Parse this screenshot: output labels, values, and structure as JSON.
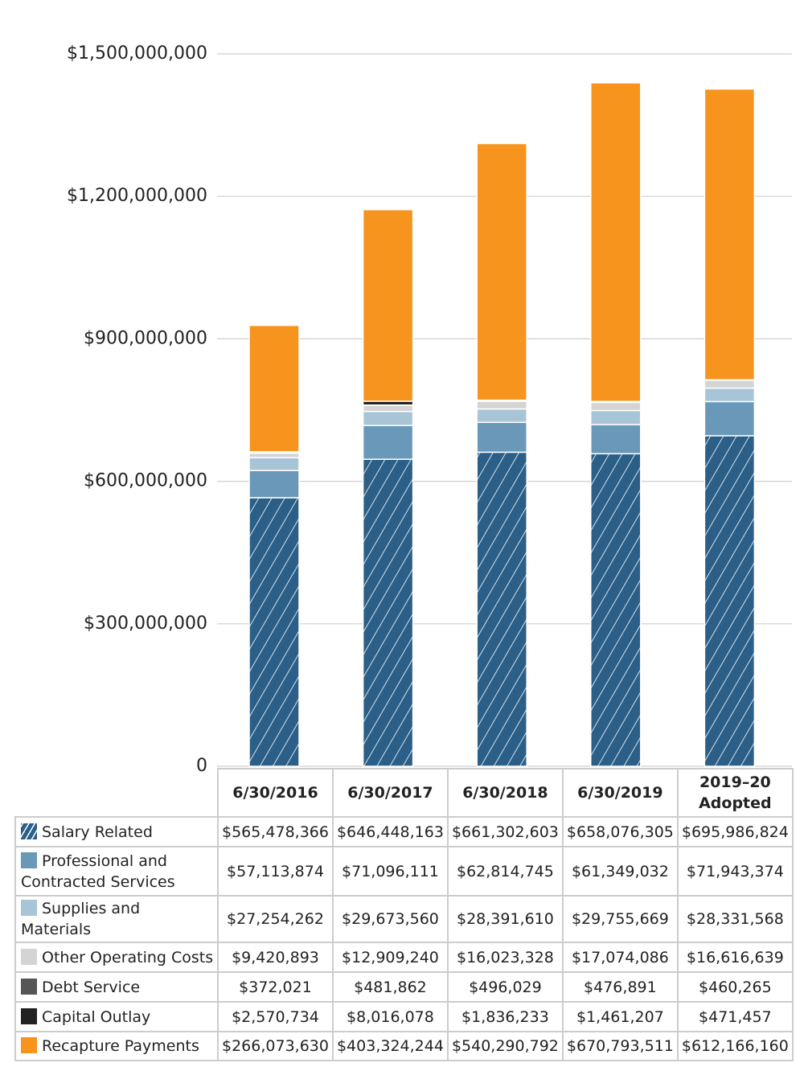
{
  "chart_data": {
    "type": "bar",
    "stacked": true,
    "categories": [
      "6/30/2016",
      "6/30/2017",
      "6/30/2018",
      "6/30/2019",
      "2019–20 Adopted"
    ],
    "ylim": [
      0,
      1500000000
    ],
    "yticks": [
      0,
      {
        "value": 300000000,
        "label": "$300,000,000"
      },
      {
        "value": 600000000,
        "label": "$600,000,000"
      },
      {
        "value": 900000000,
        "label": "$900,000,000"
      },
      {
        "value": 1200000000,
        "label": "$1,200,000,000"
      },
      {
        "value": 1500000000,
        "label": "$1,500,000,000"
      }
    ],
    "grid": true,
    "series": [
      {
        "name": "Salary Related",
        "color": "#2b5f88",
        "hatch": true,
        "values": [
          565478366,
          646448163,
          661302603,
          658076305,
          695986824
        ],
        "value_labels": [
          "$565,478,366",
          "$646,448,163",
          "$661,302,603",
          "$658,076,305",
          "$695,986,824"
        ]
      },
      {
        "name": "Professional and Contracted Services",
        "color": "#6a98b8",
        "values": [
          57113874,
          71096111,
          62814745,
          61349032,
          71943374
        ],
        "value_labels": [
          "$57,113,874",
          "$71,096,111",
          "$62,814,745",
          "$61,349,032",
          "$71,943,374"
        ]
      },
      {
        "name": "Supplies and Materials",
        "color": "#a8c5d8",
        "values": [
          27254262,
          29673560,
          28391610,
          29755669,
          28331568
        ],
        "value_labels": [
          "$27,254,262",
          "$29,673,560",
          "$28,391,610",
          "$29,755,669",
          "$28,331,568"
        ]
      },
      {
        "name": "Other Operating Costs",
        "color": "#d4d4d4",
        "values": [
          9420893,
          12909240,
          16023328,
          17074086,
          16616639
        ],
        "value_labels": [
          "$9,420,893",
          "$12,909,240",
          "$16,023,328",
          "$17,074,086",
          "$16,616,639"
        ]
      },
      {
        "name": "Debt Service",
        "color": "#555555",
        "values": [
          372021,
          481862,
          496029,
          476891,
          460265
        ],
        "value_labels": [
          "$372,021",
          "$481,862",
          "$496,029",
          "$476,891",
          "$460,265"
        ]
      },
      {
        "name": "Capital Outlay",
        "color": "#222222",
        "values": [
          2570734,
          8016078,
          1836233,
          1461207,
          471457
        ],
        "value_labels": [
          "$2,570,734",
          "$8,016,078",
          "$1,836,233",
          "$1,461,207",
          "$471,457"
        ]
      },
      {
        "name": "Recapture Payments",
        "color": "#f7941d",
        "values": [
          266073630,
          403324244,
          540290792,
          670793511,
          612166160
        ],
        "value_labels": [
          "$266,073,630",
          "$403,324,244",
          "$540,290,792",
          "$670,793,511",
          "$612,166,160"
        ]
      }
    ]
  }
}
